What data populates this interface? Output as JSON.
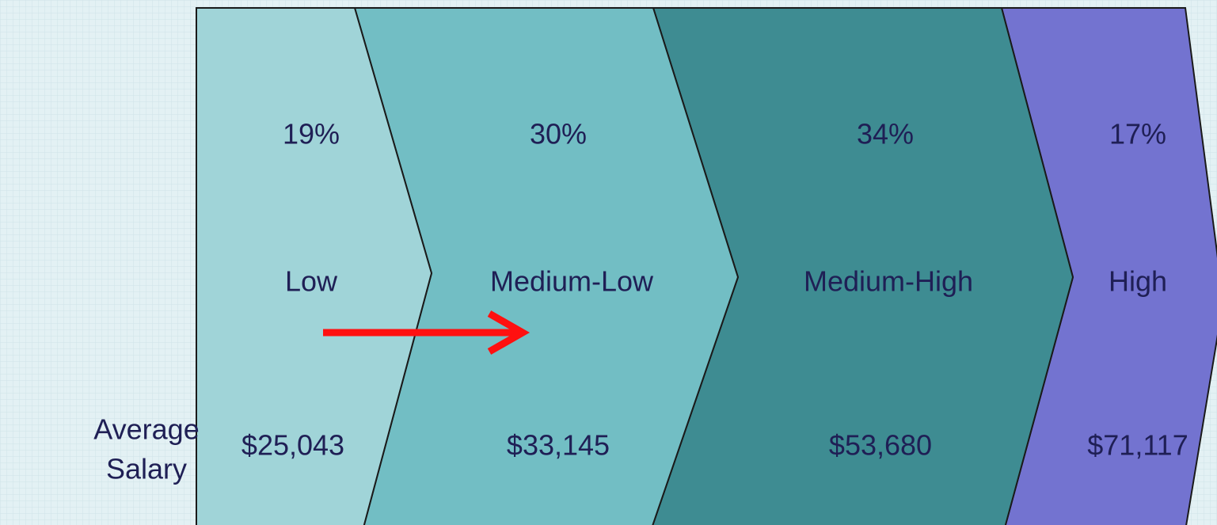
{
  "segments": [
    {
      "percent": "19%",
      "label": "Low",
      "salary": "$25,043"
    },
    {
      "percent": "30%",
      "label": "Medium-Low",
      "salary": "$33,145"
    },
    {
      "percent": "34%",
      "label": "Medium-High",
      "salary": "$53,680"
    },
    {
      "percent": "17%",
      "label": "High",
      "salary": "$71,117"
    }
  ],
  "row_label": [
    "Average",
    "Salary"
  ]
}
